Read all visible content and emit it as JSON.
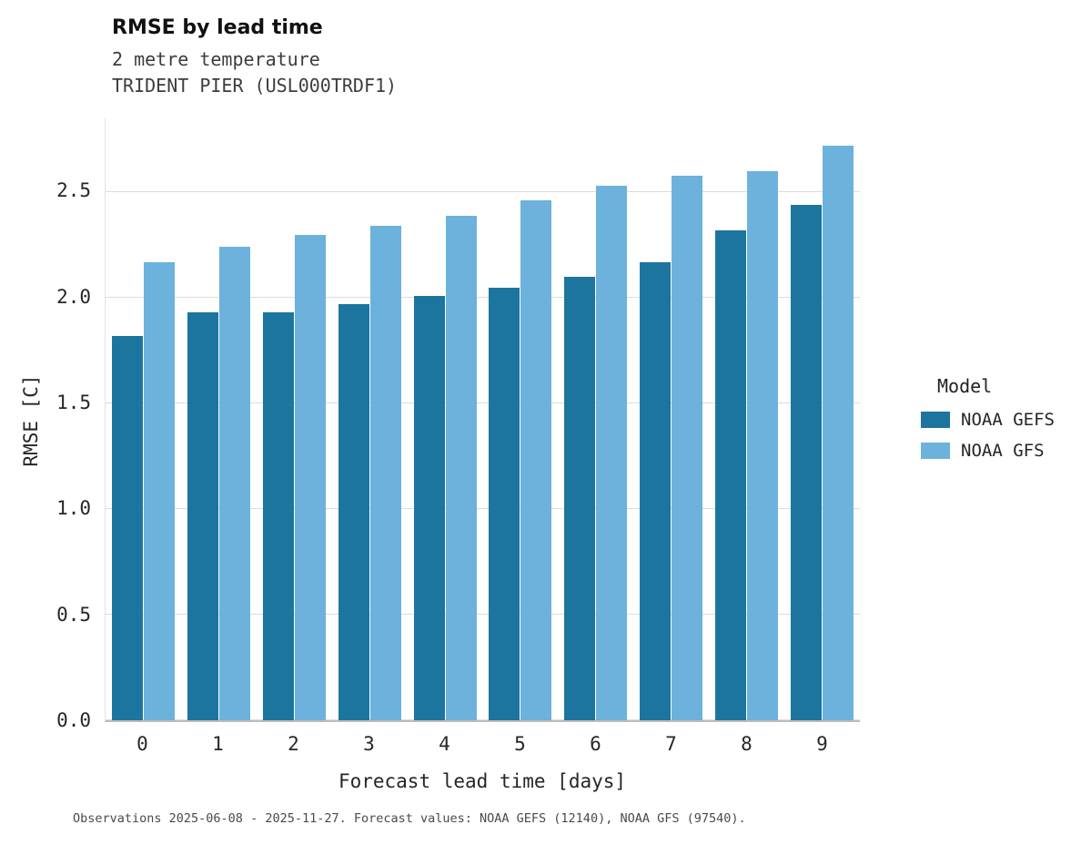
{
  "header": {
    "title": "RMSE by lead time",
    "subtitle1": "2 metre temperature",
    "subtitle2": "TRIDENT PIER (USL000TRDF1)"
  },
  "legend": {
    "title": "Model"
  },
  "caption": "Observations 2025-06-08 - 2025-11-27. Forecast values: NOAA GEFS (12140), NOAA GFS (97540).",
  "chart_data": {
    "type": "bar",
    "title": "RMSE by lead time",
    "subtitle": [
      "2 metre temperature",
      "TRIDENT PIER (USL000TRDF1)"
    ],
    "xlabel": "Forecast lead time [days]",
    "ylabel": "RMSE [C]",
    "categories": [
      "0",
      "1",
      "2",
      "3",
      "4",
      "5",
      "6",
      "7",
      "8",
      "9"
    ],
    "series": [
      {
        "name": "NOAA GEFS",
        "color": "#1c759f",
        "values": [
          1.82,
          1.93,
          1.93,
          1.97,
          2.01,
          2.05,
          2.1,
          2.17,
          2.32,
          2.44
        ]
      },
      {
        "name": "NOAA GFS",
        "color": "#6cb2dd",
        "values": [
          2.17,
          2.24,
          2.3,
          2.34,
          2.39,
          2.46,
          2.53,
          2.58,
          2.6,
          2.72
        ]
      }
    ],
    "ylim": [
      0,
      2.85
    ],
    "yticks": [
      {
        "label": "0.0",
        "value": 0.0
      },
      {
        "label": "0.5",
        "value": 0.5
      },
      {
        "label": "1.0",
        "value": 1.0
      },
      {
        "label": "1.5",
        "value": 1.5
      },
      {
        "label": "2.0",
        "value": 2.0
      },
      {
        "label": "2.5",
        "value": 2.5
      }
    ],
    "grid": true,
    "legend_title": "Model",
    "legend_position": "right"
  }
}
